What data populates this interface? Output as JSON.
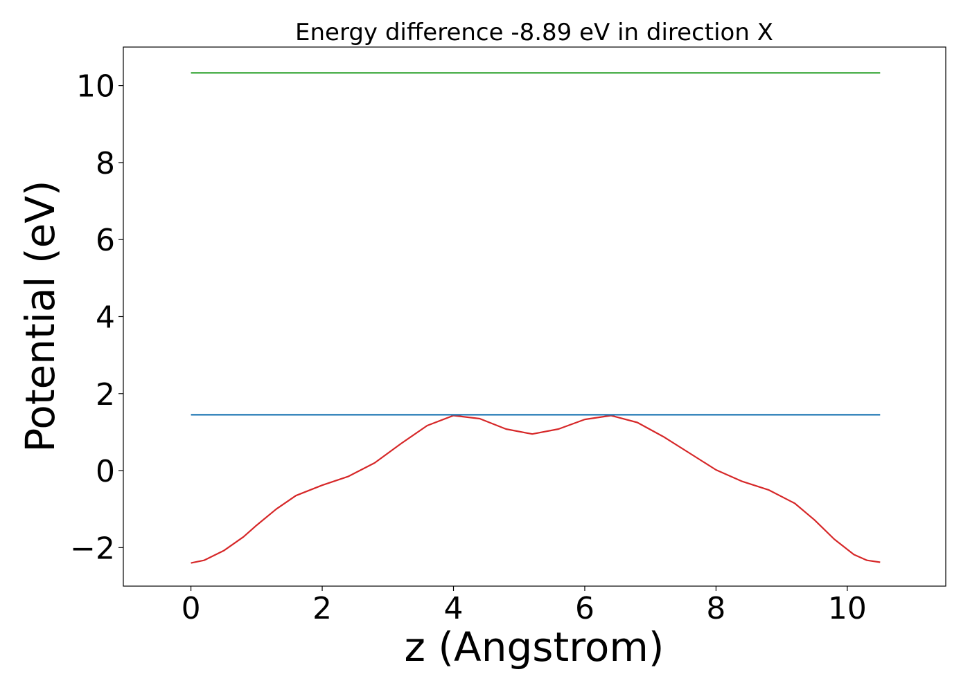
{
  "chart_data": {
    "type": "line",
    "title": "Energy difference -8.89 eV in direction X",
    "xlabel": "z (Angstrom)",
    "ylabel": "Potential (eV)",
    "xlim": [
      -1.03,
      11.5
    ],
    "ylim": [
      -3.0,
      11.0
    ],
    "xticks": [
      {
        "value": 0,
        "label": "0"
      },
      {
        "value": 2,
        "label": "2"
      },
      {
        "value": 4,
        "label": "4"
      },
      {
        "value": 6,
        "label": "6"
      },
      {
        "value": 8,
        "label": "8"
      },
      {
        "value": 10,
        "label": "10"
      }
    ],
    "yticks": [
      {
        "value": -2,
        "label": "−2"
      },
      {
        "value": 0,
        "label": "0"
      },
      {
        "value": 2,
        "label": "2"
      },
      {
        "value": 4,
        "label": "4"
      },
      {
        "value": 6,
        "label": "6"
      },
      {
        "value": 8,
        "label": "8"
      },
      {
        "value": 10,
        "label": "10"
      }
    ],
    "grid": false,
    "legend": "none",
    "series": [
      {
        "color": "#d62728",
        "x": [
          0,
          0.2,
          0.5,
          0.8,
          1.0,
          1.3,
          1.6,
          2.0,
          2.4,
          2.8,
          3.2,
          3.6,
          4.0,
          4.4,
          4.8,
          5.2,
          5.6,
          6.0,
          6.4,
          6.8,
          7.2,
          7.6,
          8.0,
          8.4,
          8.8,
          9.2,
          9.5,
          9.8,
          10.1,
          10.3,
          10.5
        ],
        "y": [
          -2.4,
          -2.33,
          -2.08,
          -1.72,
          -1.42,
          -1.0,
          -0.65,
          -0.38,
          -0.15,
          0.2,
          0.7,
          1.17,
          1.43,
          1.35,
          1.08,
          0.95,
          1.08,
          1.33,
          1.43,
          1.25,
          0.88,
          0.45,
          0.02,
          -0.28,
          -0.5,
          -0.85,
          -1.28,
          -1.78,
          -2.18,
          -2.33,
          -2.38
        ]
      },
      {
        "color": "#1f77b4",
        "x": [
          0,
          10.5
        ],
        "y": [
          1.45,
          1.45
        ]
      },
      {
        "color": "#2ca02c",
        "x": [
          0,
          10.5
        ],
        "y": [
          10.33,
          10.33
        ]
      }
    ]
  }
}
